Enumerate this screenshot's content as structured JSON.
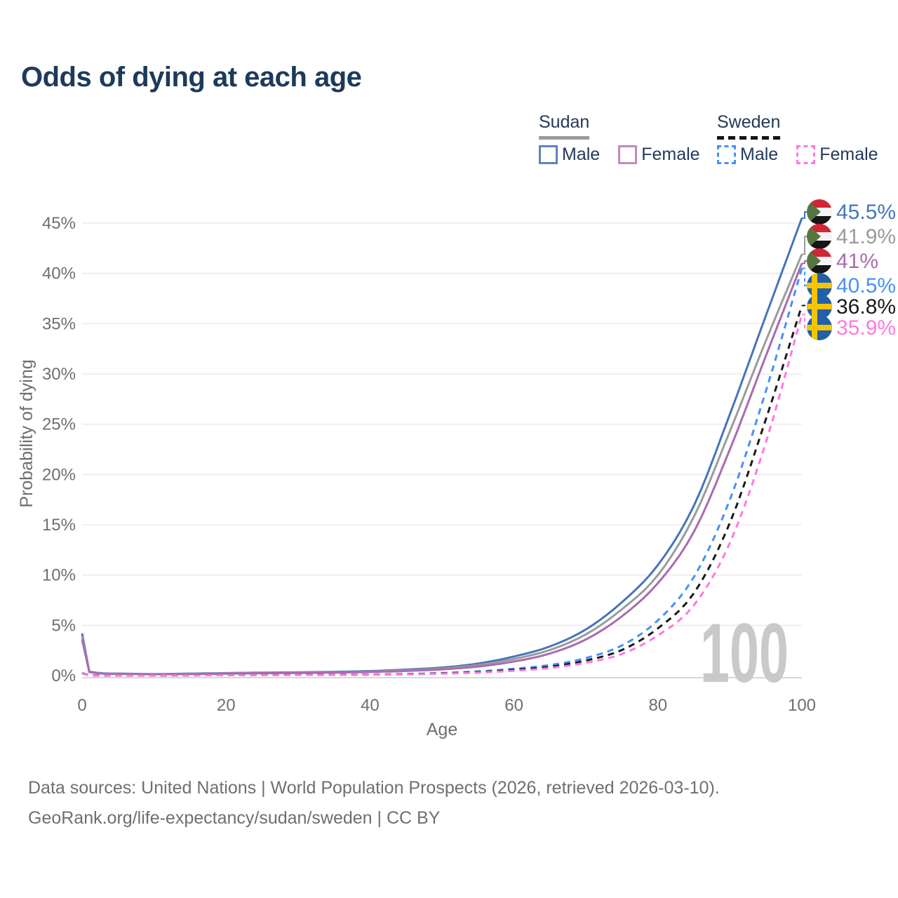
{
  "title": "Odds of dying at each age",
  "legend": {
    "groups": [
      {
        "name": "Sudan",
        "line_style": "solid",
        "underline_color": "#9b9b9b",
        "items": [
          {
            "label": "Male",
            "color": "#4575ba",
            "dashed": false
          },
          {
            "label": "Female",
            "color": "#b581bb",
            "dashed": false
          }
        ]
      },
      {
        "name": "Sweden",
        "line_style": "dashed",
        "underline_color": "#151515",
        "items": [
          {
            "label": "Male",
            "color": "#4791f4",
            "dashed": true
          },
          {
            "label": "Female",
            "color": "#ff79de",
            "dashed": true
          }
        ]
      }
    ]
  },
  "chart_data": {
    "type": "line",
    "title": "Odds of dying at each age",
    "xlabel": "Age",
    "ylabel": "Probability of dying",
    "xlim": [
      0,
      100
    ],
    "ylim": [
      0,
      47
    ],
    "x_ticks": [
      0,
      20,
      40,
      60,
      80,
      100
    ],
    "y_ticks": [
      0,
      5,
      10,
      15,
      20,
      25,
      30,
      35,
      40,
      45
    ],
    "y_tick_suffix": "%",
    "grid": "horizontal",
    "legend_position": "top-right",
    "watermark": "100",
    "ages": [
      0,
      1,
      5,
      10,
      15,
      20,
      25,
      30,
      35,
      40,
      45,
      50,
      55,
      60,
      65,
      70,
      75,
      80,
      85,
      90,
      95,
      100
    ],
    "series": [
      {
        "id": "sudan-male",
        "country": "Sudan",
        "sex": "Male",
        "color": "#4575ba",
        "dashed": false,
        "flag": "sudan",
        "end_label": "45.5%",
        "end_value": 45.5,
        "values": [
          4.2,
          0.4,
          0.2,
          0.15,
          0.2,
          0.25,
          0.3,
          0.33,
          0.38,
          0.45,
          0.6,
          0.8,
          1.2,
          1.9,
          2.9,
          4.6,
          7.3,
          11.0,
          16.9,
          26.0,
          35.8,
          45.5
        ]
      },
      {
        "id": "sudan-both",
        "country": "Sudan",
        "sex": "Both",
        "color": "#9b9b9b",
        "dashed": false,
        "flag": "sudan",
        "end_label": "41.9%",
        "end_value": 41.9,
        "values": [
          3.9,
          0.37,
          0.18,
          0.14,
          0.18,
          0.22,
          0.27,
          0.3,
          0.34,
          0.4,
          0.53,
          0.7,
          1.05,
          1.65,
          2.55,
          4.1,
          6.6,
          10.0,
          15.8,
          24.3,
          33.3,
          41.9
        ]
      },
      {
        "id": "sudan-female",
        "country": "Sudan",
        "sex": "Female",
        "color": "#a96bb0",
        "dashed": false,
        "flag": "sudan",
        "end_label": "41%",
        "end_value": 41.0,
        "values": [
          3.6,
          0.35,
          0.17,
          0.13,
          0.16,
          0.19,
          0.23,
          0.26,
          0.3,
          0.36,
          0.46,
          0.62,
          0.9,
          1.4,
          2.2,
          3.6,
          5.9,
          9.2,
          14.3,
          22.5,
          31.8,
          41.0
        ]
      },
      {
        "id": "sweden-male",
        "country": "Sweden",
        "sex": "Male",
        "color": "#4791f4",
        "dashed": true,
        "flag": "sweden",
        "end_label": "40.5%",
        "end_value": 40.5,
        "values": [
          0.25,
          0.03,
          0.01,
          0.01,
          0.03,
          0.06,
          0.07,
          0.08,
          0.09,
          0.11,
          0.16,
          0.26,
          0.42,
          0.68,
          1.05,
          1.75,
          3.0,
          5.5,
          9.8,
          17.5,
          28.3,
          40.5
        ]
      },
      {
        "id": "sweden-both",
        "country": "Sweden",
        "sex": "Both",
        "color": "#1a1a1a",
        "dashed": true,
        "flag": "sweden",
        "end_label": "36.8%",
        "end_value": 36.8,
        "values": [
          0.22,
          0.025,
          0.01,
          0.01,
          0.02,
          0.05,
          0.06,
          0.07,
          0.08,
          0.1,
          0.14,
          0.22,
          0.35,
          0.57,
          0.88,
          1.5,
          2.55,
          4.7,
          8.2,
          15.2,
          25.5,
          36.8
        ]
      },
      {
        "id": "sweden-female",
        "country": "Sweden",
        "sex": "Female",
        "color": "#ff79de",
        "dashed": true,
        "flag": "sweden",
        "end_label": "35.9%",
        "end_value": 35.9,
        "values": [
          0.2,
          0.02,
          0.01,
          0.01,
          0.02,
          0.04,
          0.05,
          0.06,
          0.07,
          0.09,
          0.12,
          0.19,
          0.3,
          0.48,
          0.75,
          1.28,
          2.15,
          4.0,
          7.0,
          13.2,
          23.2,
          35.9
        ]
      }
    ],
    "flag_colors": {
      "sudan": {
        "red": "#d32535",
        "white": "#f4f4f4",
        "black": "#151515",
        "green": "#567641"
      },
      "sweden": {
        "blue": "#2260a7",
        "yellow": "#f6c500"
      }
    }
  },
  "footer": {
    "line1": "Data sources: United Nations | World Population Prospects (2026, retrieved 2026-03-10).",
    "line2": "GeoRank.org/life-expectancy/sudan/sweden | CC BY"
  }
}
